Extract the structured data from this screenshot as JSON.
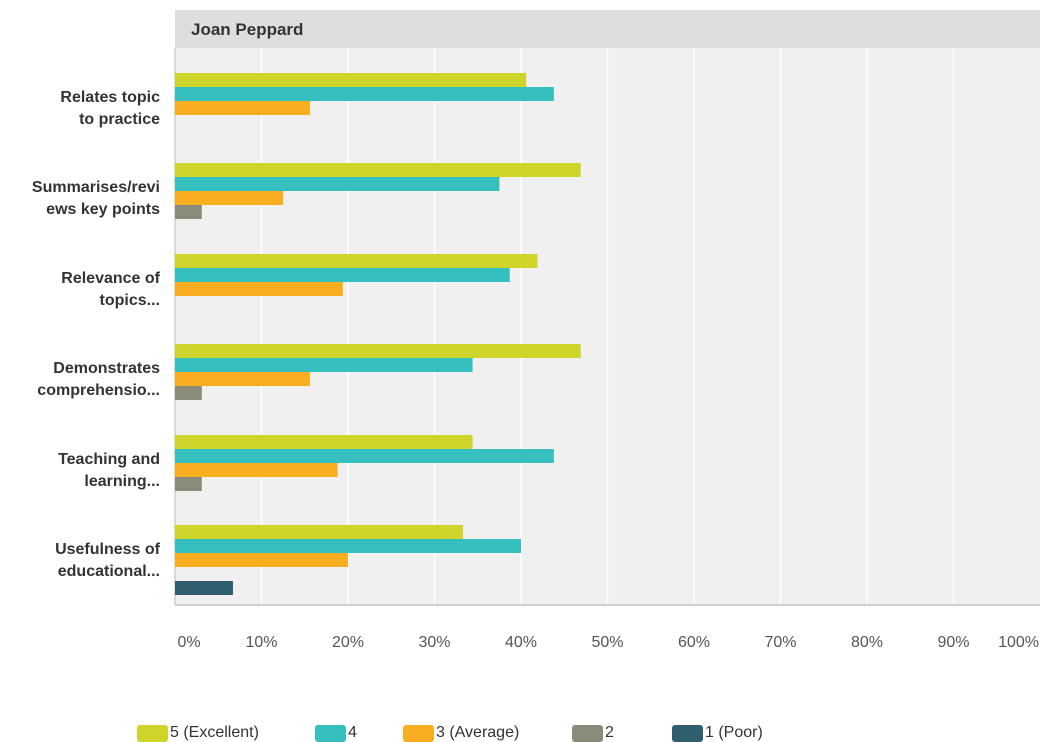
{
  "chart_data": {
    "type": "bar",
    "orientation": "horizontal",
    "title": "Joan Peppard",
    "categories": [
      [
        "Relates topic",
        "to practice"
      ],
      [
        "Summarises/revi",
        "ews key points"
      ],
      [
        "Relevance of",
        "topics..."
      ],
      [
        "Demonstrates",
        "comprehensio..."
      ],
      [
        "Teaching and",
        "learning..."
      ],
      [
        "Usefulness of",
        "educational..."
      ]
    ],
    "series": [
      {
        "name": "5 (Excellent)",
        "color": "#cfd42b",
        "values": [
          40.6,
          46.9,
          41.9,
          46.9,
          34.4,
          33.3
        ]
      },
      {
        "name": "4",
        "color": "#35bfbf",
        "values": [
          43.8,
          37.5,
          38.7,
          34.4,
          43.8,
          40.0
        ]
      },
      {
        "name": "3 (Average)",
        "color": "#f9ae22",
        "values": [
          15.6,
          12.5,
          19.4,
          15.6,
          18.8,
          20.0
        ]
      },
      {
        "name": "2",
        "color": "#8b8b7a",
        "values": [
          0,
          3.1,
          0,
          3.1,
          3.1,
          0
        ]
      },
      {
        "name": "1 (Poor)",
        "color": "#2f5f6f",
        "values": [
          0,
          0,
          0,
          0,
          0,
          6.7
        ]
      }
    ],
    "xlim": [
      0,
      100
    ],
    "x_tick_values": [
      0,
      10,
      20,
      30,
      40,
      50,
      60,
      70,
      80,
      90,
      100
    ],
    "x_tick_labels": [
      "0%",
      "10%",
      "20%",
      "30%",
      "40%",
      "50%",
      "60%",
      "70%",
      "80%",
      "90%",
      "100%"
    ],
    "grid": true,
    "legend_position": "bottom",
    "colors": {
      "background": "#f0f0f0",
      "title_band": "#dedede",
      "grid": "#ffffff",
      "axis": "#d0d0d0"
    }
  }
}
